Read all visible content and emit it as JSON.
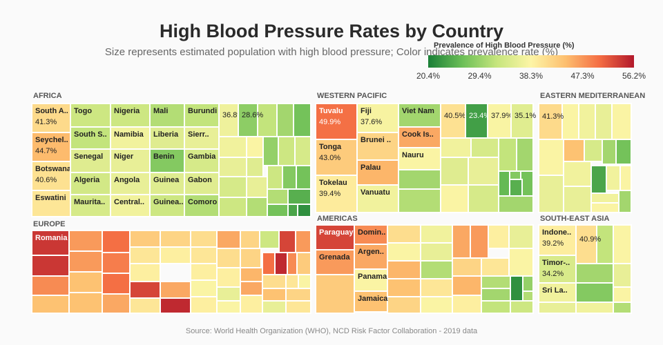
{
  "chart_data": {
    "type": "treemap",
    "title": "High Blood Pressure Rates by Country",
    "subtitle": "Size represents estimated population with high blood pressure; Color indicates prevalence rate (%)",
    "legend_title": "Prevalence of High Blood Pressure (%)",
    "color_range": [
      20.4,
      56.2
    ],
    "legend_ticks": [
      "20.4%",
      "29.4%",
      "38.3%",
      "47.3%",
      "56.2%"
    ],
    "source": "Source: World Health Organization (WHO), NCD Risk Factor Collaboration - 2019 data",
    "regions": [
      {
        "name": "AFRICA",
        "countries": [
          {
            "label": "South A..",
            "value": 41.3,
            "show_value": true
          },
          {
            "label": "Seychel..",
            "value": 44.7,
            "show_value": true
          },
          {
            "label": "Botswana",
            "value": 40.6,
            "show_value": true
          },
          {
            "label": "Eswatini",
            "value": 40.0
          },
          {
            "label": "Togo",
            "value": 33.0
          },
          {
            "label": "South S..",
            "value": 32.0
          },
          {
            "label": "Senegal",
            "value": 35.0
          },
          {
            "label": "Algeria",
            "value": 33.5
          },
          {
            "label": "Maurita..",
            "value": 34.0
          },
          {
            "label": "Nigeria",
            "value": 33.0
          },
          {
            "label": "Namibia",
            "value": 37.0
          },
          {
            "label": "Niger",
            "value": 36.0
          },
          {
            "label": "Angola",
            "value": 36.0
          },
          {
            "label": "Central..",
            "value": 37.0
          },
          {
            "label": "Mali",
            "value": 31.0
          },
          {
            "label": "Liberia",
            "value": 35.0
          },
          {
            "label": "Benin",
            "value": 28.0
          },
          {
            "label": "Guinea",
            "value": 35.0
          },
          {
            "label": "Guinea..",
            "value": 33.0
          },
          {
            "label": "Burundi",
            "value": 32.0
          },
          {
            "label": "Sierr..",
            "value": 36.0
          },
          {
            "label": "Gambia",
            "value": 34.0
          },
          {
            "label": "Gabon",
            "value": 35.0
          },
          {
            "label": "Comoro",
            "value": 31.0
          },
          {
            "label": "",
            "value": 36.8,
            "show_value": true
          },
          {
            "label": "",
            "value": 28.6,
            "show_value": true
          }
        ]
      },
      {
        "name": "WESTERN PACIFIC",
        "countries": [
          {
            "label": "Tuvalu",
            "value": 49.9,
            "show_value": true
          },
          {
            "label": "Tonga",
            "value": 43.0,
            "show_value": true
          },
          {
            "label": "Tokelau",
            "value": 39.4,
            "show_value": true
          },
          {
            "label": "Fiji",
            "value": 37.6,
            "show_value": true
          },
          {
            "label": "Brunei ..",
            "value": 42.0
          },
          {
            "label": "Palau",
            "value": 45.0
          },
          {
            "label": "Vanuatu",
            "value": 37.0
          },
          {
            "label": "Viet Nam",
            "value": 30.0
          },
          {
            "label": "Cook Is..",
            "value": 46.0
          },
          {
            "label": "Nauru",
            "value": 38.0
          },
          {
            "label": "",
            "value": 40.5,
            "show_value": true
          },
          {
            "label": "",
            "value": 23.4,
            "show_value": true
          },
          {
            "label": "",
            "value": 37.9,
            "show_value": true
          },
          {
            "label": "",
            "value": 35.1,
            "show_value": true
          }
        ]
      },
      {
        "name": "EASTERN MEDITERRANEAN",
        "countries": [
          {
            "label": "",
            "value": 41.3,
            "show_value": true
          }
        ]
      },
      {
        "name": "EUROPE",
        "countries": [
          {
            "label": "Romania",
            "value": 54.0
          }
        ]
      },
      {
        "name": "AMERICAS",
        "countries": [
          {
            "label": "Paraguay",
            "value": 53.0
          },
          {
            "label": "Grenada",
            "value": 47.0
          },
          {
            "label": "Domin..",
            "value": 48.0
          },
          {
            "label": "Argen..",
            "value": 46.0
          },
          {
            "label": "Panama",
            "value": 38.0
          },
          {
            "label": "Jamaica",
            "value": 44.0
          }
        ]
      },
      {
        "name": "SOUTH-EAST ASIA",
        "countries": [
          {
            "label": "Indone..",
            "value": 39.2,
            "show_value": true
          },
          {
            "label": "",
            "value": 40.9,
            "show_value": true
          },
          {
            "label": "Timor-..",
            "value": 34.2,
            "show_value": true
          },
          {
            "label": "Sri La..",
            "value": 37.0
          }
        ]
      }
    ]
  }
}
